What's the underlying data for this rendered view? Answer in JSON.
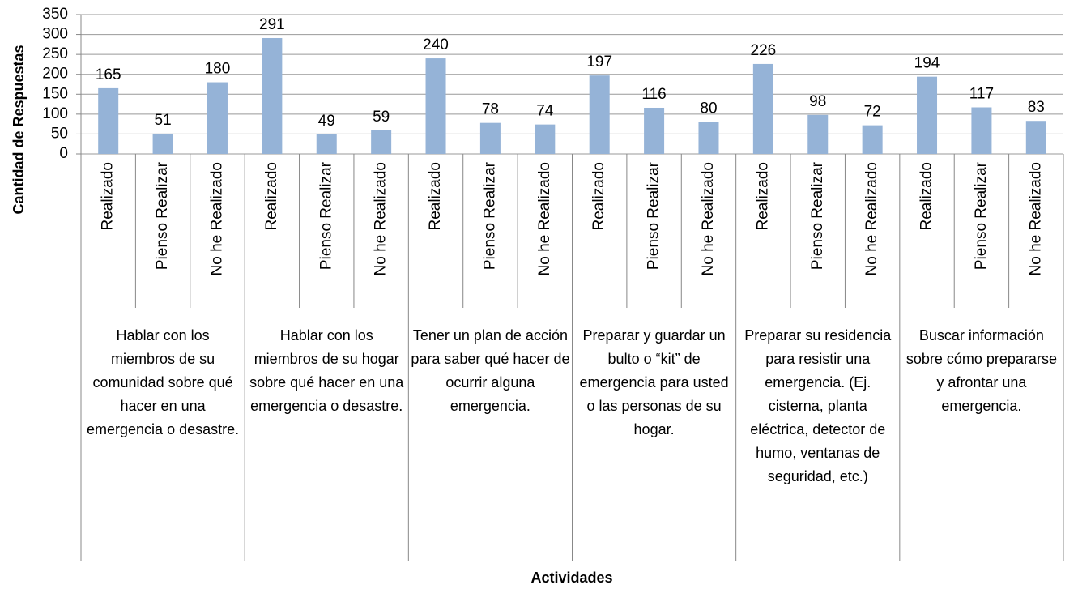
{
  "chart_data": {
    "type": "bar",
    "ylabel": "Cantidad de Respuestas",
    "xlabel": "Actividades",
    "categories": [
      "Realizado",
      "Pienso Realizar",
      "No he Realizado",
      "Realizado",
      "Pienso Realizar",
      "No he Realizado",
      "Realizado",
      "Pienso Realizar",
      "No he Realizado",
      "Realizado",
      "Pienso Realizar",
      "No he Realizado",
      "Realizado",
      "Pienso Realizar",
      "No he Realizado",
      "Realizado",
      "Pienso Realizar",
      "No he Realizado"
    ],
    "groups": [
      "Hablar con los miembros de su comunidad sobre qué hacer en una emergencia o desastre.",
      "Hablar con los miembros de su hogar sobre qué hacer en una emergencia o desastre.",
      "Tener un plan de acción para saber qué hacer de ocurrir alguna emergencia.",
      "Preparar y guardar un bulto o “kit” de emergencia para usted o las personas de su hogar.",
      "Preparar su residencia para resistir una emergencia. (Ej. cisterna, planta eléctrica, detector de humo, ventanas de seguridad, etc.)",
      "Buscar información sobre cómo prepararse y afrontar una emergencia."
    ],
    "values": [
      165,
      51,
      180,
      291,
      49,
      59,
      240,
      78,
      74,
      197,
      116,
      80,
      226,
      98,
      72,
      194,
      117,
      83
    ],
    "color": "#95b3d7",
    "ylim": [
      0,
      350
    ],
    "yticks": [
      0,
      50,
      100,
      150,
      200,
      250,
      300,
      350
    ],
    "grid": true
  }
}
